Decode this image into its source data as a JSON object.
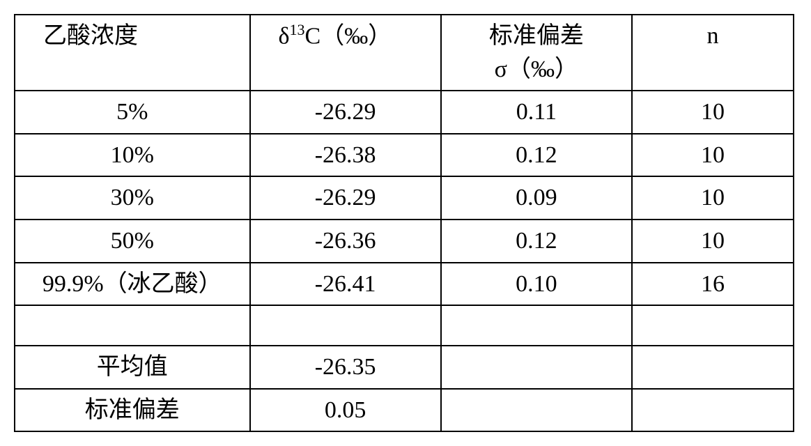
{
  "table": {
    "columns": [
      {
        "label_html": "乙酸浓度",
        "align": "left"
      },
      {
        "label_html": "δ<sup>13</sup>C（‰）",
        "align": "left"
      },
      {
        "label_html": "标准偏差<br>σ（‰）",
        "align": "center"
      },
      {
        "label_html": "n",
        "align": "center"
      }
    ],
    "rows": [
      {
        "cells": [
          "5%",
          "-26.29",
          "0.11",
          "10"
        ]
      },
      {
        "cells": [
          "10%",
          "-26.38",
          "0.12",
          "10"
        ]
      },
      {
        "cells": [
          "30%",
          "-26.29",
          "0.09",
          "10"
        ]
      },
      {
        "cells": [
          "50%",
          "-26.36",
          "0.12",
          "10"
        ]
      },
      {
        "cells": [
          "99.9%（冰乙酸）",
          "-26.41",
          "0.10",
          "16"
        ]
      },
      {
        "cells": [
          "",
          "",
          "",
          ""
        ],
        "empty": true
      },
      {
        "cells": [
          "平均值",
          "-26.35",
          "",
          ""
        ]
      },
      {
        "cells": [
          "标准偏差",
          "0.05",
          "",
          ""
        ]
      }
    ],
    "col_widths": [
      "320px",
      "260px",
      "260px",
      "220px"
    ],
    "border_color": "#000000",
    "background_color": "#ffffff",
    "font_size": 34,
    "font_family": "SimSun, Times New Roman, serif"
  }
}
